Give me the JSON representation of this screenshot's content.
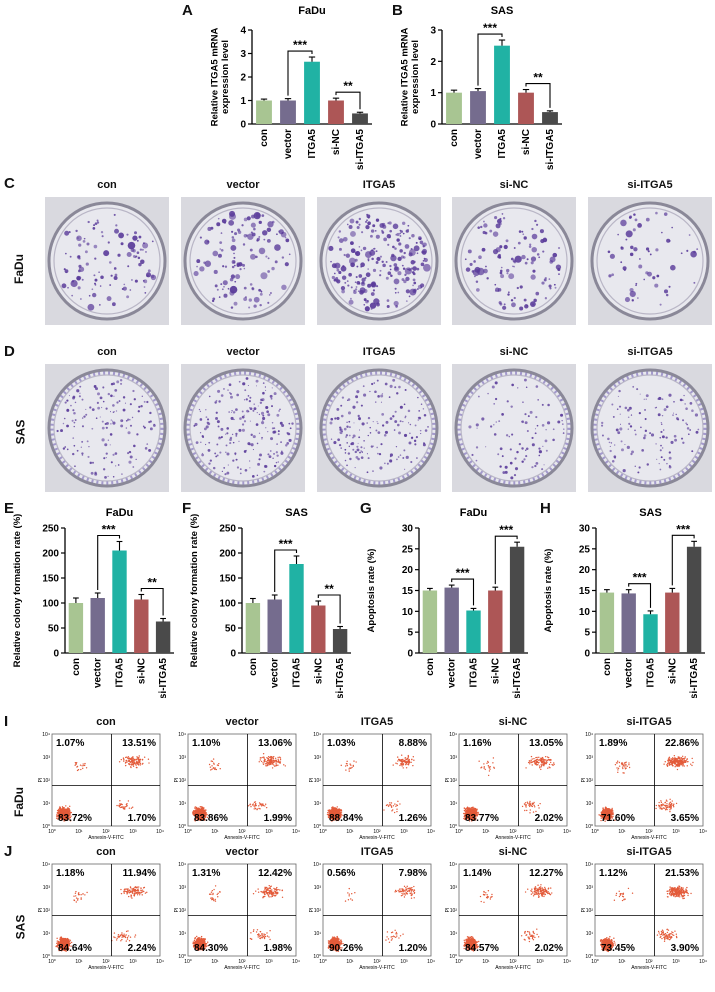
{
  "panel_letters": [
    "A",
    "B",
    "C",
    "D",
    "E",
    "F",
    "G",
    "H",
    "I",
    "J"
  ],
  "colors": {
    "con": "#a8c592",
    "vector": "#756c8e",
    "ITGA5": "#20b2a4",
    "si-NC": "#ad5656",
    "si-ITGA5": "#4a4a4a",
    "dish_bg": "#e8e8ee",
    "colony": "#5a3b9a",
    "flow_dot": "#e35b3a"
  },
  "groups": [
    "con",
    "vector",
    "ITGA5",
    "si-NC",
    "si-ITGA5"
  ],
  "row_labels": {
    "C": "FaDu",
    "D": "SAS",
    "I": "FaDu",
    "J": "SAS"
  },
  "flow_axis": {
    "xlabel": "Annexin-V-FITC",
    "ylabel": "PI",
    "ticks": [
      "10⁰",
      "10¹",
      "10²",
      "10³",
      "10⁴"
    ]
  },
  "chart_data": [
    {
      "id": "A",
      "type": "bar",
      "title": "FaDu",
      "ylabel": "Relative ITGA5 mRNA expression level",
      "categories": [
        "con",
        "vector",
        "ITGA5",
        "si-NC",
        "si-ITGA5"
      ],
      "values": [
        1.0,
        1.0,
        2.65,
        1.0,
        0.45
      ],
      "errors": [
        0.06,
        0.08,
        0.2,
        0.1,
        0.05
      ],
      "ylim": [
        0,
        4
      ],
      "yticks": [
        "0",
        "1",
        "2",
        "3",
        "4"
      ],
      "sig": [
        {
          "from": 1,
          "to": 2,
          "label": "***"
        },
        {
          "from": 3,
          "to": 4,
          "label": "**"
        }
      ]
    },
    {
      "id": "B",
      "type": "bar",
      "title": "SAS",
      "ylabel": "Relative ITGA5 mRNA expression level",
      "categories": [
        "con",
        "vector",
        "ITGA5",
        "si-NC",
        "si-ITGA5"
      ],
      "values": [
        1.0,
        1.05,
        2.5,
        1.0,
        0.38
      ],
      "errors": [
        0.08,
        0.08,
        0.18,
        0.1,
        0.04
      ],
      "ylim": [
        0,
        3
      ],
      "yticks": [
        "0",
        "1",
        "2",
        "3"
      ],
      "sig": [
        {
          "from": 1,
          "to": 2,
          "label": "***"
        },
        {
          "from": 3,
          "to": 4,
          "label": "**"
        }
      ]
    },
    {
      "id": "E",
      "type": "bar",
      "title": "FaDu",
      "ylabel": "Relative colony formation rate (%)",
      "categories": [
        "con",
        "vector",
        "ITGA5",
        "si-NC",
        "si-ITGA5"
      ],
      "values": [
        100,
        110,
        205,
        107,
        63
      ],
      "errors": [
        10,
        10,
        18,
        10,
        6
      ],
      "ylim": [
        0,
        250
      ],
      "yticks": [
        "0",
        "50",
        "100",
        "150",
        "200",
        "250"
      ],
      "sig": [
        {
          "from": 1,
          "to": 2,
          "label": "***"
        },
        {
          "from": 3,
          "to": 4,
          "label": "**"
        }
      ]
    },
    {
      "id": "F",
      "type": "bar",
      "title": "SAS",
      "ylabel": "Relative colony formation rate (%)",
      "categories": [
        "con",
        "vector",
        "ITGA5",
        "si-NC",
        "si-ITGA5"
      ],
      "values": [
        100,
        107,
        178,
        95,
        48
      ],
      "errors": [
        9,
        9,
        16,
        9,
        5
      ],
      "ylim": [
        0,
        250
      ],
      "yticks": [
        "0",
        "50",
        "100",
        "150",
        "200",
        "250"
      ],
      "sig": [
        {
          "from": 1,
          "to": 2,
          "label": "***"
        },
        {
          "from": 3,
          "to": 4,
          "label": "**"
        }
      ]
    },
    {
      "id": "G",
      "type": "bar",
      "title": "FaDu",
      "ylabel": "Apoptosis rate (%)",
      "categories": [
        "con",
        "vector",
        "ITGA5",
        "si-NC",
        "si-ITGA5"
      ],
      "values": [
        15,
        15.7,
        10.2,
        15,
        25.5
      ],
      "errors": [
        0.5,
        0.6,
        0.5,
        0.8,
        1.1
      ],
      "ylim": [
        0,
        30
      ],
      "yticks": [
        "0",
        "5",
        "10",
        "15",
        "20",
        "25",
        "30"
      ],
      "sig": [
        {
          "from": 1,
          "to": 2,
          "label": "***"
        },
        {
          "from": 3,
          "to": 4,
          "label": "***"
        }
      ]
    },
    {
      "id": "H",
      "type": "bar",
      "title": "SAS",
      "ylabel": "Apoptosis rate (%)",
      "categories": [
        "con",
        "vector",
        "ITGA5",
        "si-NC",
        "si-ITGA5"
      ],
      "values": [
        14.5,
        14.3,
        9.3,
        14.5,
        25.5
      ],
      "errors": [
        0.7,
        0.9,
        0.8,
        1.0,
        1.3
      ],
      "ylim": [
        0,
        30
      ],
      "yticks": [
        "0",
        "5",
        "10",
        "15",
        "20",
        "25",
        "30"
      ],
      "sig": [
        {
          "from": 1,
          "to": 2,
          "label": "***"
        },
        {
          "from": 3,
          "to": 4,
          "label": "***"
        }
      ]
    }
  ],
  "flow_I": [
    {
      "group": "con",
      "ul": "1.07%",
      "ur": "13.51%",
      "ll": "83.72%",
      "lr": "1.70%"
    },
    {
      "group": "vector",
      "ul": "1.10%",
      "ur": "13.06%",
      "ll": "83.86%",
      "lr": "1.99%"
    },
    {
      "group": "ITGA5",
      "ul": "1.03%",
      "ur": "8.88%",
      "ll": "88.84%",
      "lr": "1.26%"
    },
    {
      "group": "si-NC",
      "ul": "1.16%",
      "ur": "13.05%",
      "ll": "83.77%",
      "lr": "2.02%"
    },
    {
      "group": "si-ITGA5",
      "ul": "1.89%",
      "ur": "22.86%",
      "ll": "71.60%",
      "lr": "3.65%"
    }
  ],
  "flow_J": [
    {
      "group": "con",
      "ul": "1.18%",
      "ur": "11.94%",
      "ll": "84.64%",
      "lr": "2.24%"
    },
    {
      "group": "vector",
      "ul": "1.31%",
      "ur": "12.42%",
      "ll": "84.30%",
      "lr": "1.98%"
    },
    {
      "group": "ITGA5",
      "ul": "0.56%",
      "ur": "7.98%",
      "ll": "90.26%",
      "lr": "1.20%"
    },
    {
      "group": "si-NC",
      "ul": "1.14%",
      "ur": "12.27%",
      "ll": "84.57%",
      "lr": "2.02%"
    },
    {
      "group": "si-ITGA5",
      "ul": "1.12%",
      "ur": "21.53%",
      "ll": "73.45%",
      "lr": "3.90%"
    }
  ]
}
